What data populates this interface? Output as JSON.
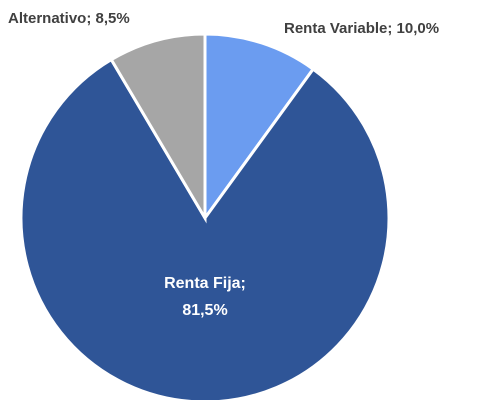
{
  "chart_data": {
    "type": "pie",
    "values": [
      10.0,
      81.5,
      8.5
    ],
    "value_labels": [
      "Renta Variable; 10,0%",
      "Renta Fija; 81,5%",
      "Alternativo; 8,5%"
    ],
    "colors": [
      "#6b9cf0",
      "#2f5597",
      "#a6a6a6"
    ]
  }
}
